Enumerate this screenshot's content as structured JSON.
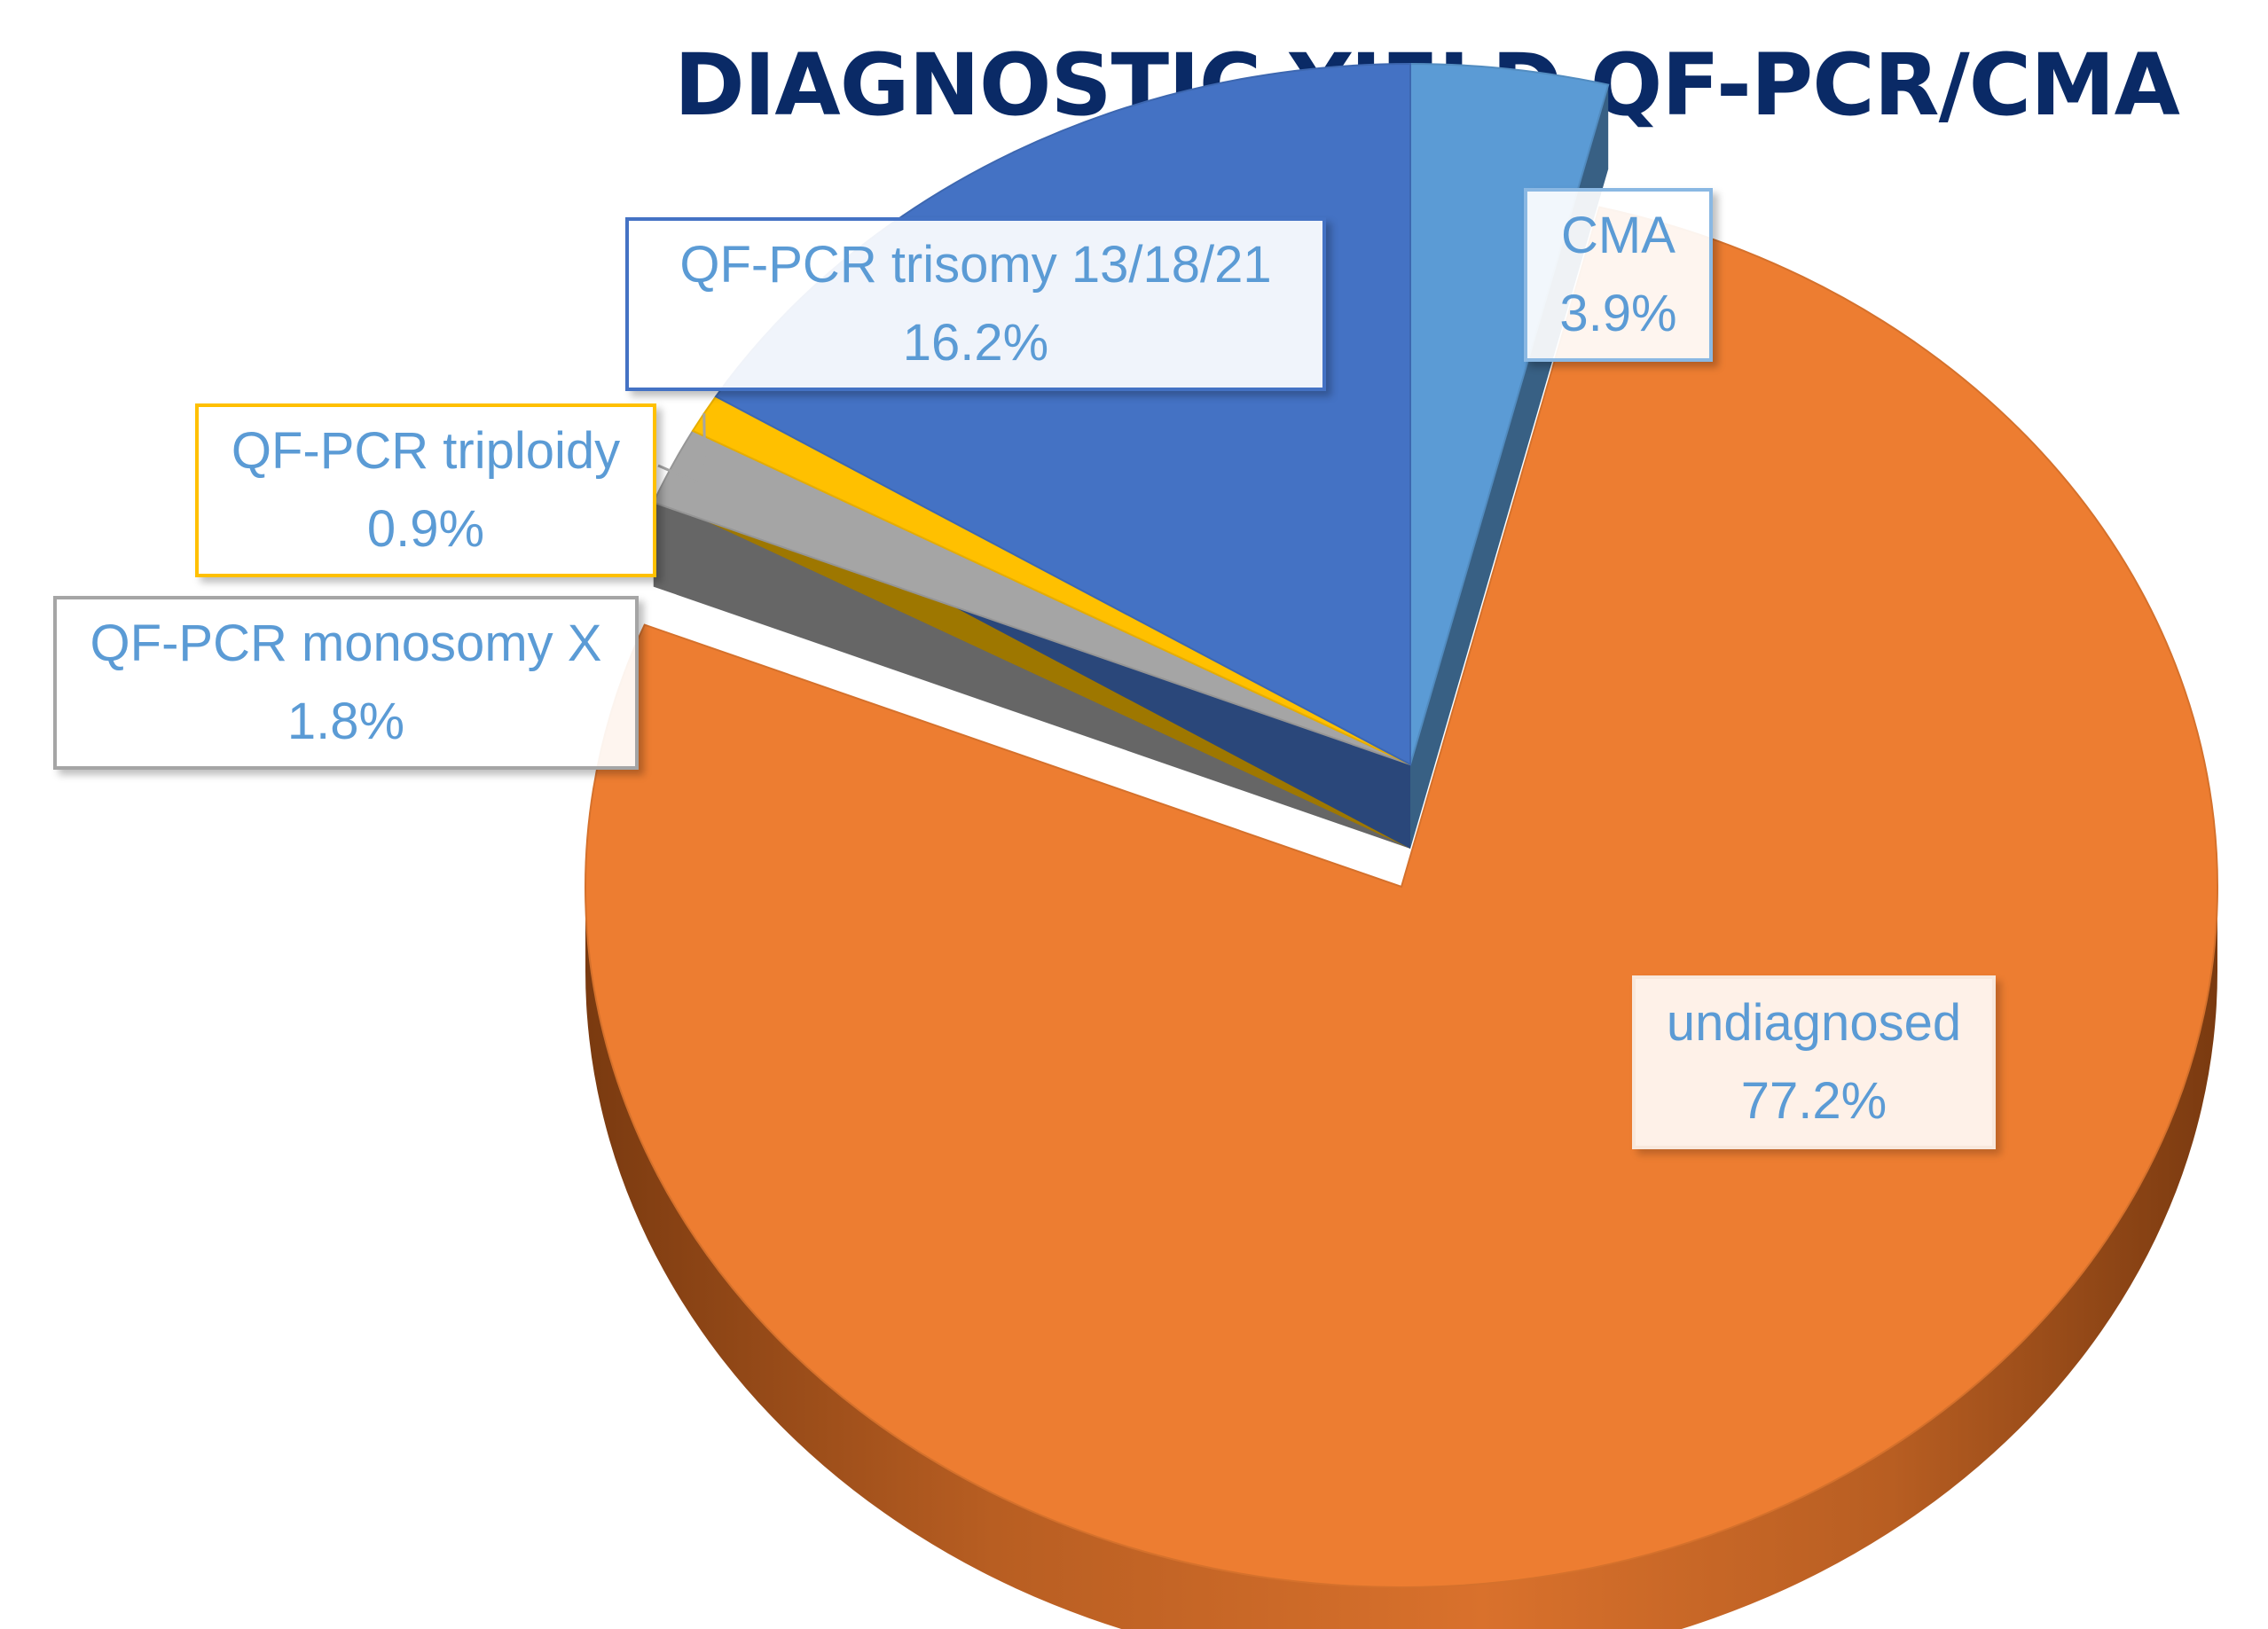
{
  "chart_data": {
    "type": "pie",
    "title": "DIAGNOSTIC YIELD QF-PCR/CMA",
    "style": "3d-exploded",
    "slices": [
      {
        "name": "CMA",
        "value": 3.9,
        "label_value": "3.9%",
        "color": "#5b9bd5"
      },
      {
        "name": "undiagnosed",
        "value": 77.2,
        "label_value": "77.2%",
        "color": "#ed7d31"
      },
      {
        "name": "QF-PCR monosomy X",
        "value": 1.8,
        "label_value": "1.8%",
        "color": "#a5a5a5"
      },
      {
        "name": "QF-PCR triploidy",
        "value": 0.9,
        "label_value": "0.9%",
        "color": "#ffc000"
      },
      {
        "name": "QF-PCR trisomy 13/18/21",
        "value": 16.2,
        "label_value": "16.2%",
        "color": "#4472c4"
      }
    ],
    "label_color": "#5b9bd5",
    "title_color": "#0a2a66"
  }
}
